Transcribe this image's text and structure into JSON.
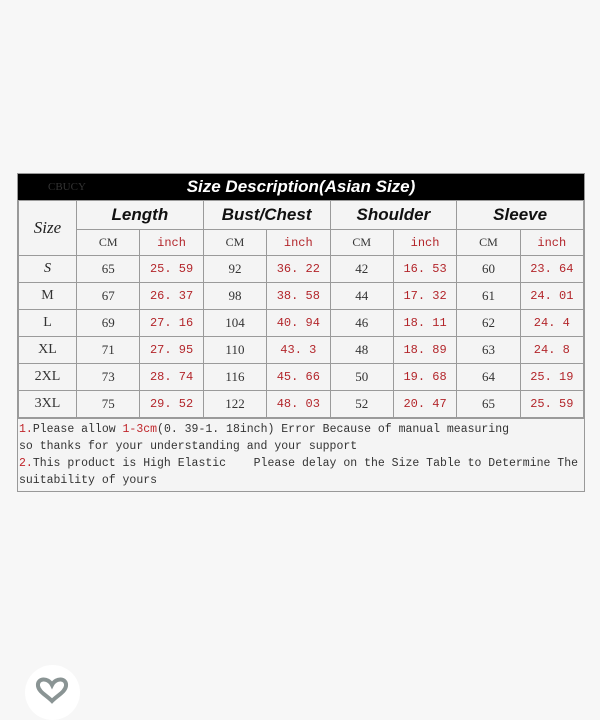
{
  "logo": "CBUCY",
  "title": "Size Description(Asian Size)",
  "size_header": "Size",
  "groups": [
    "Length",
    "Bust/Chest",
    "Shoulder",
    "Sleeve"
  ],
  "units": [
    "CM",
    "inch",
    "CM",
    "inch",
    "CM",
    "inch",
    "CM",
    "inch"
  ],
  "rows": [
    {
      "size": "S",
      "values": [
        "65",
        "25. 59",
        "92",
        "36. 22",
        "42",
        "16. 53",
        "60",
        "23. 64"
      ]
    },
    {
      "size": "M",
      "values": [
        "67",
        "26. 37",
        "98",
        "38. 58",
        "44",
        "17. 32",
        "61",
        "24. 01"
      ]
    },
    {
      "size": "L",
      "values": [
        "69",
        "27. 16",
        "104",
        "40. 94",
        "46",
        "18. 11",
        "62",
        "24. 4"
      ]
    },
    {
      "size": "XL",
      "values": [
        "71",
        "27. 95",
        "110",
        "43. 3",
        "48",
        "18. 89",
        "63",
        "24. 8"
      ]
    },
    {
      "size": "2XL",
      "values": [
        "73",
        "28. 74",
        "116",
        "45. 66",
        "50",
        "19. 68",
        "64",
        "25. 19"
      ]
    },
    {
      "size": "3XL",
      "values": [
        "75",
        "29. 52",
        "122",
        "48. 03",
        "52",
        "20. 47",
        "65",
        "25. 59"
      ]
    }
  ],
  "notes": {
    "n1_num": "1.",
    "n1_a": "Please allow ",
    "n1_red": "1-3cm",
    "n1_b": "(0. 39-1. 18inch) Error Because of manual measuring",
    "n1_line2": "so thanks for your understanding and your support",
    "n2_num": "2.",
    "n2_a": "This product is High Elastic    Please delay on the Size Table to Determine The",
    "n2_line2": "suitability of yours"
  },
  "colors": {
    "red": "#b3262b",
    "title_bg": "#000000"
  },
  "favorite_icon": "heart-icon"
}
